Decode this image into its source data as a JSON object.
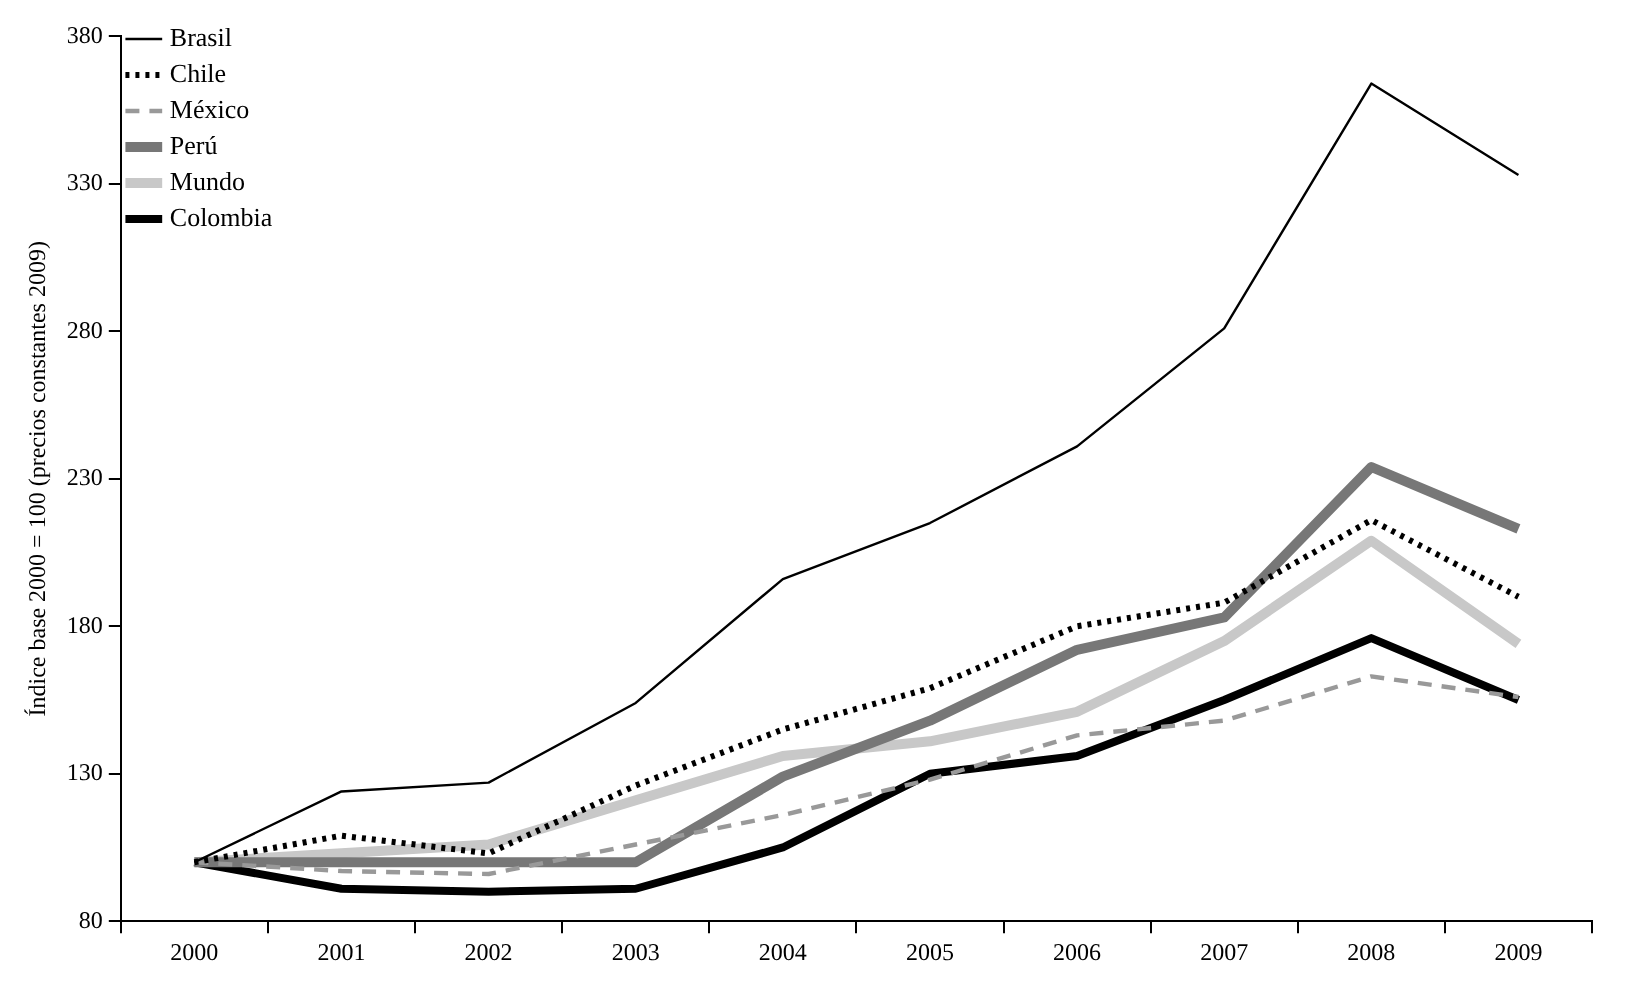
{
  "chart_data": {
    "type": "line",
    "ylabel": "Índice base 2000 = 100 (precios constantes 2009)",
    "categories": [
      "2000",
      "2001",
      "2002",
      "2003",
      "2004",
      "2005",
      "2006",
      "2007",
      "2008",
      "2009"
    ],
    "ylim": [
      80,
      380
    ],
    "yticks": [
      80,
      130,
      180,
      230,
      280,
      330,
      380
    ],
    "grid": false,
    "legend": "top left",
    "marker": "none",
    "series": [
      {
        "name": "Brasil",
        "color": "#000000",
        "line_style": "solid",
        "values": [
          100,
          124,
          127,
          154,
          196,
          215,
          241,
          281,
          364,
          333
        ]
      },
      {
        "name": "Chile",
        "color": "#000000",
        "line_style": "dotted",
        "values": [
          100,
          109,
          103,
          126,
          145,
          159,
          180,
          188,
          216,
          190
        ]
      },
      {
        "name": "México",
        "color": "#999999",
        "line_style": "dashed",
        "values": [
          100,
          97,
          96,
          106,
          116,
          128,
          143,
          148,
          163,
          156
        ]
      },
      {
        "name": "Perú",
        "color": "#777777",
        "line_style": "solid",
        "values": [
          100,
          100,
          100,
          100,
          129,
          148,
          172,
          183,
          234,
          213
        ]
      },
      {
        "name": "Mundo",
        "color": "#c8c8c8",
        "line_style": "solid",
        "values": [
          100,
          103,
          106,
          121,
          136,
          141,
          151,
          175,
          209,
          174
        ]
      },
      {
        "name": "Colombia",
        "color": "#000000",
        "line_style": "solid",
        "values": [
          100,
          91,
          90,
          91,
          105,
          130,
          136,
          155,
          176,
          155
        ]
      }
    ]
  }
}
